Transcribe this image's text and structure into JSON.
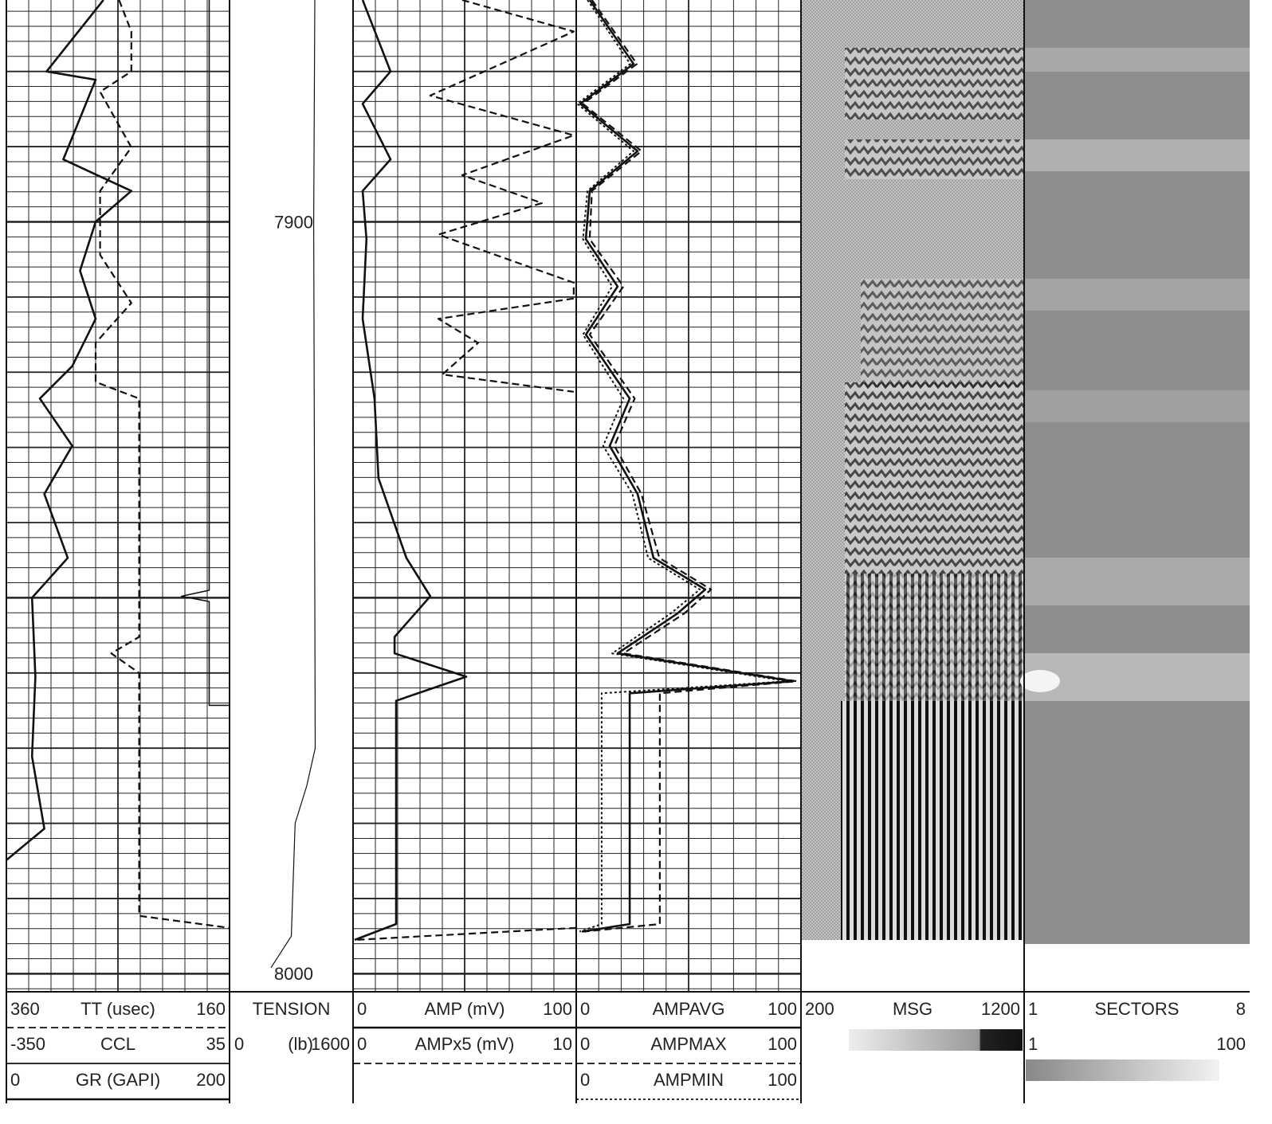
{
  "chart_data": {
    "type": "well-log",
    "depth": {
      "lim": [
        7870.5,
        8002.4
      ],
      "labels": [
        7900,
        8000
      ]
    },
    "tracks": [
      {
        "curves": [
          {
            "name": "TT (usec)",
            "left": 360,
            "right": 160,
            "style": "dashed",
            "depth": [
              7870.5,
              7874.7,
              7880.0,
              7882.7,
              7890.1,
              7895.9,
              7904.4,
              7910.8,
              7916.1,
              7921.3,
              7923.5,
              7955.2,
              7957.4,
              7960.0,
              7992.3,
              7993.9
            ],
            "values": [
              259,
              248,
              248,
              276,
              248,
              276,
              276,
              248,
              280,
              280,
              241,
              241,
              266,
              241,
              241,
              160
            ]
          },
          {
            "name": "CCL",
            "left": -350,
            "right": 35,
            "style": "solid",
            "depth": [
              7870.5,
              7949.0,
              7949.8,
              7950.5,
              7964.3,
              7964.3
            ],
            "values": [
              0,
              0,
              -48,
              0,
              0,
              35
            ]
          },
          {
            "name": "GR (GAPI)",
            "left": 0,
            "right": 200,
            "style": "thick",
            "depth": [
              7870.5,
              7880.0,
              7881.1,
              7891.7,
              7895.9,
              7900.0,
              7906.5,
              7912.9,
              7919.2,
              7923.5,
              7929.8,
              7936.2,
              7944.7,
              7950.0,
              7960.5,
              7971.1,
              7980.7,
              7984.9
            ],
            "values": [
              87,
              36,
              80,
              51,
              112,
              80,
              66,
              80,
              59,
              30,
              59,
              34,
              55,
              23,
              26,
              23,
              34,
              0
            ]
          }
        ]
      },
      {
        "curves": [
          {
            "name": "TENSION",
            "unit": "(lb)",
            "left": 0,
            "right": 1600,
            "style": "thin",
            "depth": [
              7870.5,
              7900.0,
              7950.0,
              7970.0,
              7975.0,
              7980.0,
              7995.0,
              7999.2
            ],
            "values": [
              1105,
              1090,
              1105,
              1110,
              1000,
              850,
              800,
              537
            ]
          }
        ]
      },
      {
        "curves": [
          {
            "name": "AMP (mV)",
            "left": 0,
            "right": 100,
            "style": "thick",
            "depth": [
              7870.5,
              7880.0,
              7884.3,
              7891.7,
              7895.9,
              7902.3,
              7912.9,
              7923.5,
              7934.1,
              7944.7,
              7949.8,
              7955.2,
              7957.4,
              7960.5,
              7963.7,
              7993.4,
              7995.5
            ],
            "values": [
              4.3,
              16.8,
              4.3,
              16.8,
              4.3,
              6,
              4.3,
              9.6,
              11.4,
              23.9,
              34.6,
              18.6,
              18.6,
              50.7,
              19.3,
              19.3,
              0.7
            ]
          },
          {
            "name": "AMPx5 (mV)",
            "left": 0,
            "right": 10,
            "style": "dashed",
            "depth": [
              7870.5,
              7874.7,
              7883.2,
              7888.5,
              7893.8,
              7897.5,
              7901.7,
              7908.1,
              7910.2,
              7912.9,
              7916.1,
              7920.3,
              7922.6,
              null,
              7993.9,
              7995.5
            ],
            "values": [
              4.89,
              9.89,
              3.46,
              9.89,
              4.89,
              8.46,
              3.82,
              9.89,
              9.89,
              3.82,
              5.6,
              4.0,
              9.89,
              null,
              10,
              0.1
            ]
          }
        ]
      },
      {
        "curves": [
          {
            "name": "AMPAVG",
            "left": 0,
            "right": 100,
            "style": "thick",
            "depth": [
              7870.5,
              7879.0,
              7884.3,
              7890.6,
              7895.9,
              7902.3,
              7908.6,
              7915.0,
              7923.5,
              7929.8,
              7936.2,
              7944.7,
              7948.9,
              7952.1,
              7957.4,
              7961.1,
              7962.7,
              7993.4,
              7994.4
            ],
            "values": [
              6,
              25.5,
              1.8,
              27.3,
              6,
              4.3,
              18.4,
              4.3,
              23.8,
              14.9,
              27.3,
              34.4,
              57.4,
              45,
              18.4,
              96.5,
              23.8,
              23.8,
              2.5
            ]
          },
          {
            "name": "AMPMAX",
            "left": 0,
            "right": 100,
            "style": "dashed",
            "depth": [
              7870.5,
              7879.0,
              7884.3,
              7890.6,
              7895.9,
              7902.3,
              7908.6,
              7915.0,
              7923.5,
              7929.8,
              7936.2,
              7944.7,
              7948.9,
              7952.1,
              7957.4,
              7961.1,
              7962.7,
              7993.4,
              7994.4
            ],
            "values": [
              7,
              27,
              3,
              29,
              7,
              6,
              21,
              6,
              26,
              17,
              29,
              37,
              60,
              48,
              21,
              98,
              37.2,
              37.2,
              3.5
            ]
          },
          {
            "name": "AMPMIN",
            "left": 0,
            "right": 100,
            "style": "dotted",
            "depth": [
              7870.5,
              7879.0,
              7884.3,
              7890.6,
              7895.9,
              7902.3,
              7908.6,
              7915.0,
              7923.5,
              7929.8,
              7936.2,
              7944.7,
              7948.9,
              7952.1,
              7957.4,
              7961.1,
              7962.7,
              7993.4,
              7994.4
            ],
            "values": [
              5,
              24,
              0.5,
              25.5,
              5,
              3,
              16,
              3,
              21,
              12,
              25,
              32,
              55,
              42,
              16,
              94,
              11.3,
              11.3,
              1.5
            ]
          }
        ]
      },
      {
        "curves": [
          {
            "name": "MSG",
            "left": 200,
            "right": 1200,
            "style": "image"
          }
        ]
      },
      {
        "curves": [
          {
            "name": "SECTORS",
            "left": 1,
            "right": 8,
            "style": "image"
          },
          {
            "left": 1,
            "right": 100,
            "style": "image"
          }
        ]
      }
    ]
  }
}
